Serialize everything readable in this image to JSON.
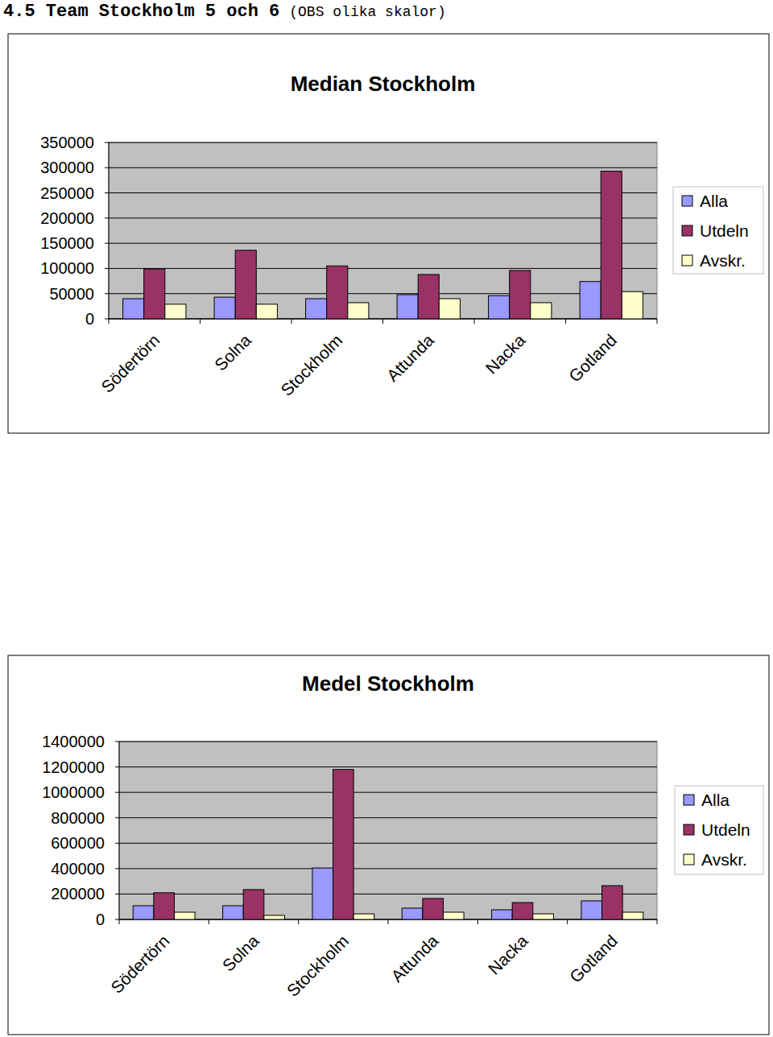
{
  "heading": {
    "title": "4.5 Team Stockholm 5 och 6",
    "note": "(OBS olika skalor)"
  },
  "chart_data": [
    {
      "type": "bar",
      "title": "Median Stockholm",
      "categories": [
        "Södertörn",
        "Solna",
        "Stockholm",
        "Attunda",
        "Nacka",
        "Gotland"
      ],
      "series": [
        {
          "name": "Alla",
          "color": "#9999ff",
          "values": [
            40000,
            43000,
            40000,
            48000,
            46000,
            74000
          ]
        },
        {
          "name": "Utdeln",
          "color": "#993366",
          "values": [
            99000,
            136000,
            105000,
            88000,
            96000,
            293000
          ]
        },
        {
          "name": "Avskr.",
          "color": "#ffffcc",
          "values": [
            29000,
            29000,
            32000,
            40000,
            32000,
            54000
          ]
        }
      ],
      "ylim": [
        0,
        350000
      ],
      "yticks": [
        0,
        50000,
        100000,
        150000,
        200000,
        250000,
        300000,
        350000
      ],
      "grid": true,
      "legend": "right"
    },
    {
      "type": "bar",
      "title": "Medel Stockholm",
      "categories": [
        "Södertörn",
        "Solna",
        "Stockholm",
        "Attunda",
        "Nacka",
        "Gotland"
      ],
      "series": [
        {
          "name": "Alla",
          "color": "#9999ff",
          "values": [
            108000,
            108000,
            405000,
            89000,
            76000,
            146000
          ]
        },
        {
          "name": "Utdeln",
          "color": "#993366",
          "values": [
            210000,
            235000,
            1180000,
            165000,
            133000,
            266000
          ]
        },
        {
          "name": "Avskr.",
          "color": "#ffffcc",
          "values": [
            57000,
            32000,
            44000,
            57000,
            44000,
            57000
          ]
        }
      ],
      "ylim": [
        0,
        1400000
      ],
      "yticks": [
        0,
        200000,
        400000,
        600000,
        800000,
        1000000,
        1200000,
        1400000
      ],
      "grid": true,
      "legend": "right"
    }
  ]
}
